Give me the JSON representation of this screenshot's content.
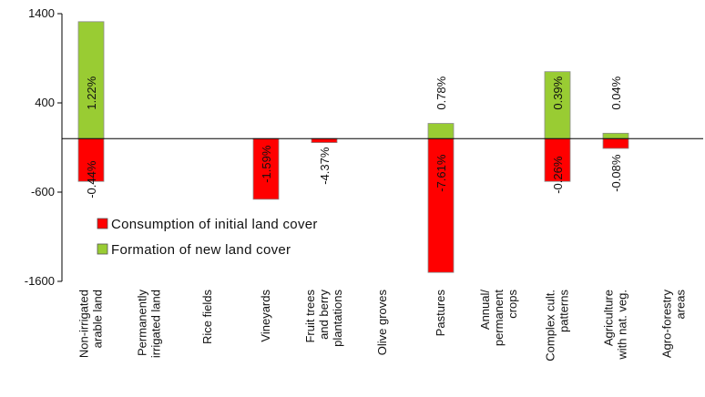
{
  "chart_data": {
    "type": "bar",
    "stacked": "diverging",
    "title": "",
    "xlabel": "",
    "ylabel": "",
    "ylim": [
      -1600,
      1400
    ],
    "yticks": [
      1400,
      400,
      -600,
      -1600
    ],
    "grid": false,
    "legend_position": "center-left",
    "categories": [
      [
        "Non-irrigated",
        "arable land"
      ],
      [
        "Permanently",
        "irrigated land"
      ],
      [
        "Rice fields"
      ],
      [
        "Vineyards"
      ],
      [
        "Fruit trees",
        "and berry",
        "plantations"
      ],
      [
        "Olive groves"
      ],
      [
        "Pastures"
      ],
      [
        "Annual/",
        "permanent",
        "crops"
      ],
      [
        "Complex cult.",
        "patterns"
      ],
      [
        "Agriculture",
        "with nat. veg."
      ],
      [
        "Agro-forestry",
        "areas"
      ]
    ],
    "series": [
      {
        "name": "Consumption of initial land cover",
        "color": "#ff0000",
        "values": [
          -480,
          0,
          0,
          -680,
          -45,
          0,
          -1500,
          0,
          -480,
          -110,
          0
        ],
        "labels": [
          "-0.44%",
          "",
          "",
          "-1.59%",
          "-4.37%",
          "",
          "-7.61%",
          "",
          "-0.26%",
          "-0.08%",
          ""
        ]
      },
      {
        "name": "Formation of new land cover",
        "color": "#99cc33",
        "values": [
          1310,
          0,
          0,
          0,
          0,
          0,
          170,
          0,
          750,
          60,
          0
        ],
        "labels": [
          "1.22%",
          "",
          "",
          "",
          "",
          "",
          "0.78%",
          "",
          "0.39%",
          "0.04%",
          ""
        ]
      }
    ]
  }
}
